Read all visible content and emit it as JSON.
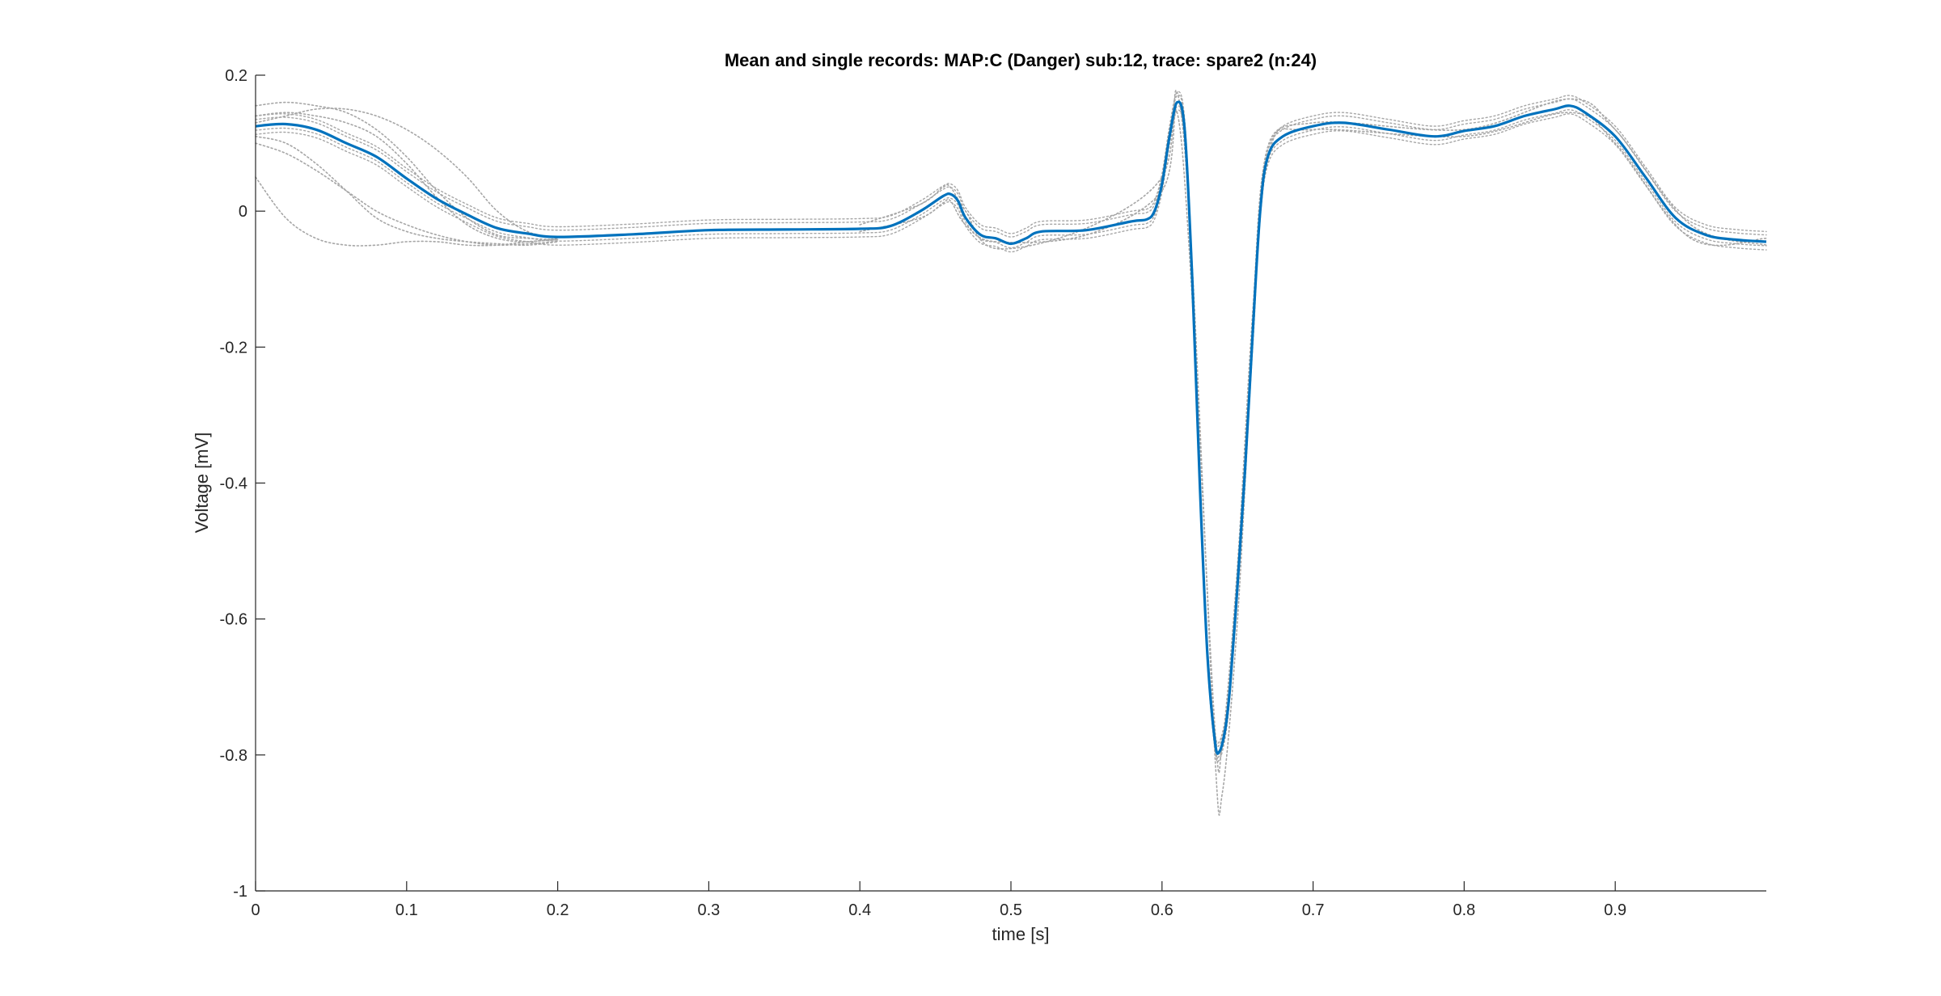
{
  "chart_data": {
    "type": "line",
    "title": "Mean and single records: MAP:C (Danger) sub:12, trace: spare2 (n:24)",
    "xlabel": "time [s]",
    "ylabel": "Voltage [mV]",
    "xlim": [
      0,
      1.0
    ],
    "ylim": [
      -1,
      0.2
    ],
    "xticks": [
      0,
      0.1,
      0.2,
      0.3,
      0.4,
      0.5,
      0.6,
      0.7,
      0.8,
      0.9
    ],
    "xtick_labels": [
      "0",
      "0.1",
      "0.2",
      "0.3",
      "0.4",
      "0.5",
      "0.6",
      "0.7",
      "0.8",
      "0.9"
    ],
    "yticks": [
      -1,
      -0.8,
      -0.6,
      -0.4,
      -0.2,
      0,
      0.2
    ],
    "ytick_labels": [
      "-1",
      "-0.8",
      "-0.6",
      "-0.4",
      "-0.2",
      "0",
      "0.2"
    ],
    "grid": false,
    "legend": "none",
    "colors": {
      "mean": "#0072bd",
      "single": "#a6a6a6",
      "axes": "#262626"
    },
    "mean_series": {
      "style": "solid",
      "x": [
        0,
        0.02,
        0.04,
        0.06,
        0.08,
        0.1,
        0.12,
        0.14,
        0.16,
        0.18,
        0.2,
        0.25,
        0.3,
        0.35,
        0.4,
        0.42,
        0.44,
        0.455,
        0.46,
        0.465,
        0.47,
        0.48,
        0.49,
        0.5,
        0.51,
        0.52,
        0.55,
        0.58,
        0.59,
        0.595,
        0.6,
        0.605,
        0.61,
        0.615,
        0.62,
        0.625,
        0.63,
        0.635,
        0.638,
        0.642,
        0.645,
        0.65,
        0.655,
        0.66,
        0.665,
        0.67,
        0.68,
        0.7,
        0.72,
        0.75,
        0.78,
        0.8,
        0.82,
        0.84,
        0.86,
        0.87,
        0.88,
        0.9,
        0.92,
        0.94,
        0.96,
        0.98,
        1.0
      ],
      "y": [
        0.125,
        0.128,
        0.12,
        0.1,
        0.08,
        0.048,
        0.018,
        -0.005,
        -0.025,
        -0.033,
        -0.038,
        -0.034,
        -0.028,
        -0.027,
        -0.026,
        -0.022,
        0.0,
        0.022,
        0.025,
        0.015,
        -0.01,
        -0.035,
        -0.04,
        -0.048,
        -0.04,
        -0.03,
        -0.028,
        -0.015,
        -0.012,
        0.0,
        0.04,
        0.11,
        0.16,
        0.12,
        -0.1,
        -0.4,
        -0.65,
        -0.78,
        -0.795,
        -0.76,
        -0.7,
        -0.55,
        -0.38,
        -0.18,
        0.0,
        0.08,
        0.11,
        0.125,
        0.13,
        0.12,
        0.11,
        0.118,
        0.125,
        0.14,
        0.15,
        0.155,
        0.145,
        0.11,
        0.05,
        -0.01,
        -0.035,
        -0.042,
        -0.045
      ]
    },
    "single_series_count": 24,
    "single_series": [
      {
        "style": "dotted",
        "x": [
          0,
          0.02,
          0.04,
          0.06,
          0.08,
          0.1,
          0.12,
          0.14,
          0.16,
          0.18,
          0.2
        ],
        "y": [
          0.155,
          0.16,
          0.155,
          0.145,
          0.12,
          0.08,
          0.03,
          -0.01,
          -0.035,
          -0.04,
          -0.042
        ]
      },
      {
        "style": "dotted",
        "x": [
          0,
          0.02,
          0.04,
          0.06,
          0.08,
          0.1,
          0.12,
          0.14,
          0.16,
          0.18,
          0.2
        ],
        "y": [
          0.05,
          -0.01,
          -0.04,
          -0.05,
          -0.05,
          -0.045,
          -0.045,
          -0.05,
          -0.05,
          -0.045,
          -0.042
        ]
      },
      {
        "style": "dotted",
        "x": [
          0,
          0.02,
          0.04,
          0.06,
          0.08,
          0.1,
          0.12,
          0.14,
          0.16,
          0.18,
          0.2
        ],
        "y": [
          0.11,
          0.1,
          0.07,
          0.03,
          -0.01,
          -0.03,
          -0.04,
          -0.045,
          -0.048,
          -0.05,
          -0.045
        ]
      },
      {
        "style": "dotted",
        "x": [
          0,
          0.02,
          0.04,
          0.06,
          0.08,
          0.1,
          0.12,
          0.14,
          0.16,
          0.18,
          0.2
        ],
        "y": [
          0.14,
          0.145,
          0.14,
          0.13,
          0.11,
          0.07,
          0.02,
          -0.02,
          -0.04,
          -0.045,
          -0.04
        ]
      },
      {
        "style": "dotted",
        "x": [
          0,
          0.02,
          0.04,
          0.06,
          0.08,
          0.1,
          0.12,
          0.14,
          0.16,
          0.18,
          0.2
        ],
        "y": [
          0.13,
          0.14,
          0.15,
          0.15,
          0.14,
          0.12,
          0.09,
          0.05,
          0.0,
          -0.03,
          -0.04
        ]
      },
      {
        "style": "dotted",
        "x": [
          0,
          0.02,
          0.04,
          0.06,
          0.08,
          0.1,
          0.12,
          0.14,
          0.16,
          0.18,
          0.2
        ],
        "y": [
          0.1,
          0.085,
          0.06,
          0.03,
          0.0,
          -0.02,
          -0.035,
          -0.045,
          -0.05,
          -0.048,
          -0.045
        ]
      },
      {
        "style": "dotted",
        "x": [
          0.4,
          0.44,
          0.455,
          0.46,
          0.47,
          0.49,
          0.55,
          0.6,
          0.61,
          0.62,
          0.635,
          0.64,
          0.65,
          0.66,
          0.67,
          0.7,
          0.8,
          0.87,
          0.9,
          0.95,
          1.0
        ],
        "y": [
          -0.02,
          0.01,
          0.035,
          0.035,
          0.0,
          -0.055,
          -0.025,
          0.05,
          0.175,
          -0.08,
          -0.8,
          -0.855,
          -0.6,
          -0.2,
          0.08,
          0.13,
          0.12,
          0.165,
          0.12,
          -0.02,
          -0.05
        ]
      },
      {
        "style": "dotted",
        "x": [
          0.4,
          0.44,
          0.455,
          0.46,
          0.47,
          0.49,
          0.55,
          0.6,
          0.61,
          0.62,
          0.635,
          0.64,
          0.65,
          0.66,
          0.67,
          0.7,
          0.8,
          0.87,
          0.9,
          0.95,
          1.0
        ],
        "y": [
          -0.03,
          -0.01,
          0.012,
          0.015,
          -0.02,
          -0.045,
          -0.035,
          0.03,
          0.145,
          -0.13,
          -0.76,
          -0.78,
          -0.52,
          -0.15,
          0.09,
          0.12,
          0.11,
          0.145,
          0.1,
          -0.04,
          -0.04
        ]
      }
    ]
  }
}
